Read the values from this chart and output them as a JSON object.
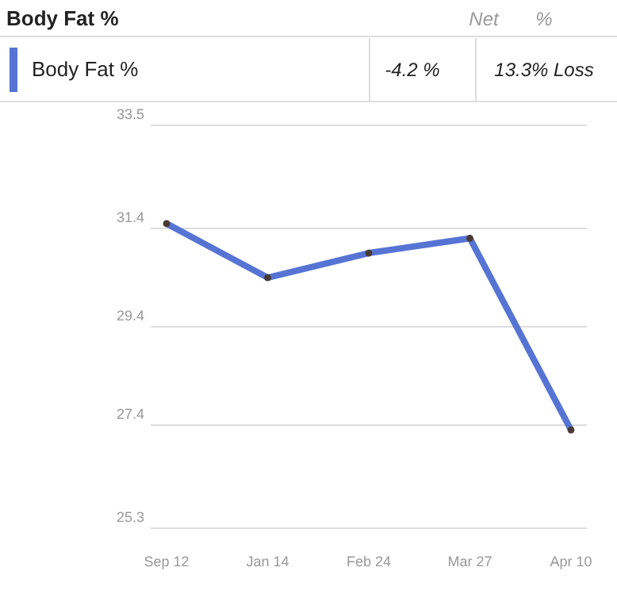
{
  "chart_data": {
    "type": "line",
    "title": "Body Fat %",
    "categories": [
      "Sep 12",
      "Jan 14",
      "Feb 24",
      "Mar 27",
      "Apr 10"
    ],
    "series": [
      {
        "name": "Body Fat %",
        "color": "#5674d4",
        "values": [
          31.5,
          30.4,
          30.9,
          31.2,
          27.3
        ]
      }
    ],
    "ylim": [
      25.3,
      33.5
    ],
    "yticks": [
      25.3,
      27.4,
      29.4,
      31.4,
      33.5
    ],
    "grid": "y",
    "legend": "top",
    "marker": "circle",
    "line_style": "solid",
    "annotations": [
      "Net",
      "%",
      "-4.2 %",
      "13.3% Loss"
    ]
  }
}
